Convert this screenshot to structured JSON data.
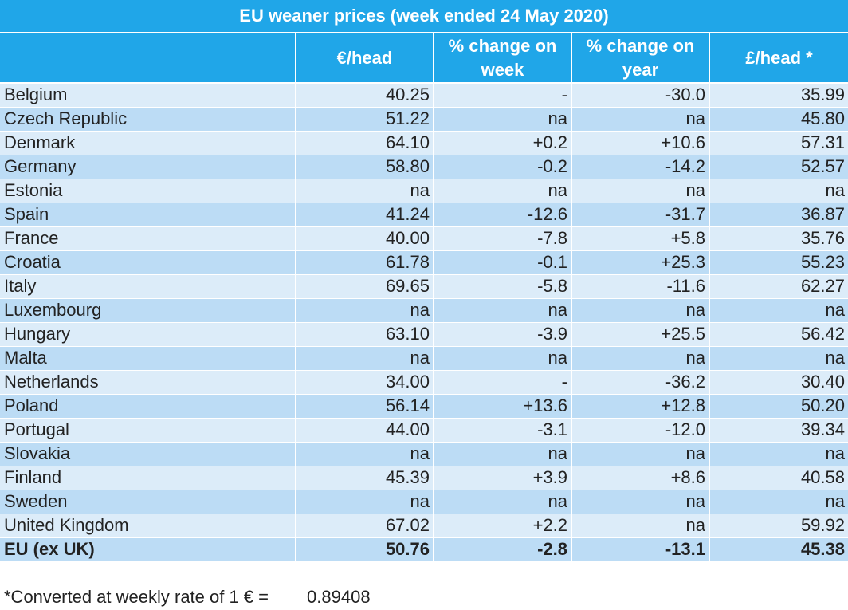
{
  "title": "EU weaner prices (week ended 24 May 2020)",
  "headers": {
    "country": "",
    "eur_head": "€/head",
    "change_week": "% change on week",
    "change_year": "% change on year",
    "gbp_head": "£/head *"
  },
  "rows": [
    {
      "country": "Belgium",
      "eur": "40.25",
      "week": "-",
      "year": "-30.0",
      "gbp": "35.99"
    },
    {
      "country": "Czech Republic",
      "eur": "51.22",
      "week": "na",
      "year": "na",
      "gbp": "45.80"
    },
    {
      "country": "Denmark",
      "eur": "64.10",
      "week": "+0.2",
      "year": "+10.6",
      "gbp": "57.31"
    },
    {
      "country": "Germany",
      "eur": "58.80",
      "week": "-0.2",
      "year": "-14.2",
      "gbp": "52.57"
    },
    {
      "country": "Estonia",
      "eur": "na",
      "week": "na",
      "year": "na",
      "gbp": "na"
    },
    {
      "country": "Spain",
      "eur": "41.24",
      "week": "-12.6",
      "year": "-31.7",
      "gbp": "36.87"
    },
    {
      "country": "France",
      "eur": "40.00",
      "week": "-7.8",
      "year": "+5.8",
      "gbp": "35.76"
    },
    {
      "country": "Croatia",
      "eur": "61.78",
      "week": "-0.1",
      "year": "+25.3",
      "gbp": "55.23"
    },
    {
      "country": "Italy",
      "eur": "69.65",
      "week": "-5.8",
      "year": "-11.6",
      "gbp": "62.27"
    },
    {
      "country": "Luxembourg",
      "eur": "na",
      "week": "na",
      "year": "na",
      "gbp": "na"
    },
    {
      "country": "Hungary",
      "eur": "63.10",
      "week": "-3.9",
      "year": "+25.5",
      "gbp": "56.42"
    },
    {
      "country": "Malta",
      "eur": "na",
      "week": "na",
      "year": "na",
      "gbp": "na"
    },
    {
      "country": "Netherlands",
      "eur": "34.00",
      "week": "-",
      "year": "-36.2",
      "gbp": "30.40"
    },
    {
      "country": "Poland",
      "eur": "56.14",
      "week": "+13.6",
      "year": "+12.8",
      "gbp": "50.20"
    },
    {
      "country": "Portugal",
      "eur": "44.00",
      "week": "-3.1",
      "year": "-12.0",
      "gbp": "39.34"
    },
    {
      "country": "Slovakia",
      "eur": "na",
      "week": "na",
      "year": "na",
      "gbp": "na"
    },
    {
      "country": "Finland",
      "eur": "45.39",
      "week": "+3.9",
      "year": "+8.6",
      "gbp": "40.58"
    },
    {
      "country": "Sweden",
      "eur": "na",
      "week": "na",
      "year": "na",
      "gbp": "na"
    },
    {
      "country": "United Kingdom",
      "eur": "67.02",
      "week": "+2.2",
      "year": "na",
      "gbp": "59.92"
    }
  ],
  "total": {
    "country": "EU (ex UK)",
    "eur": "50.76",
    "week": "-2.8",
    "year": "-13.1",
    "gbp": "45.38"
  },
  "footnote": {
    "label": "*Converted at weekly rate of 1 € =",
    "rate": "0.89408"
  },
  "colors": {
    "header_bg": "#20a6e8",
    "row_light": "#dcecf9",
    "row_dark": "#bcdcf5"
  }
}
